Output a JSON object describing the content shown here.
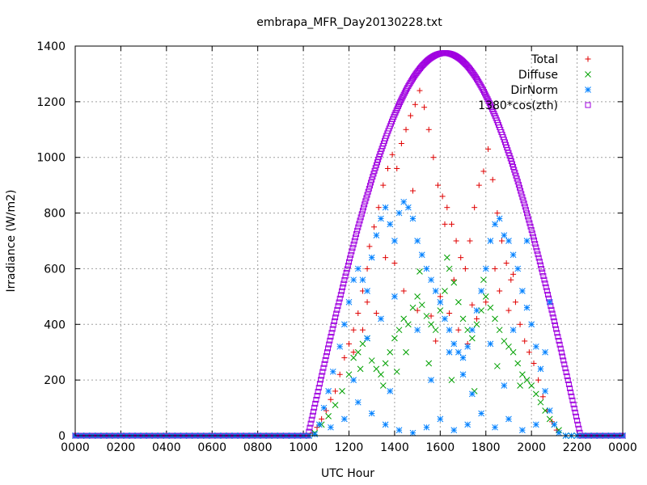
{
  "chart_data": {
    "type": "scatter",
    "title": "embrapa_MFR_Day20130228.txt",
    "xlabel": "UTC Hour",
    "ylabel": "Irradiance (W/m2)",
    "xlim": [
      0,
      24
    ],
    "ylim": [
      0,
      1400
    ],
    "x_tick_labels": [
      "0000",
      "0200",
      "0400",
      "0600",
      "0800",
      "1000",
      "1200",
      "1400",
      "1600",
      "1800",
      "2000",
      "2200",
      "0000"
    ],
    "y_ticks": [
      0,
      200,
      400,
      600,
      800,
      1000,
      1200,
      1400
    ],
    "grid": true,
    "legend_position": "top-right",
    "series": [
      {
        "name": "Total",
        "marker": "plus",
        "color": "#e00000",
        "points": [
          [
            10.4,
            10
          ],
          [
            10.6,
            30
          ],
          [
            10.8,
            60
          ],
          [
            11.0,
            90
          ],
          [
            11.2,
            130
          ],
          [
            11.4,
            160
          ],
          [
            11.6,
            220
          ],
          [
            11.8,
            280
          ],
          [
            12.0,
            330
          ],
          [
            12.2,
            380
          ],
          [
            12.4,
            440
          ],
          [
            12.6,
            520
          ],
          [
            12.8,
            600
          ],
          [
            12.9,
            680
          ],
          [
            13.1,
            750
          ],
          [
            13.3,
            820
          ],
          [
            13.5,
            900
          ],
          [
            13.7,
            960
          ],
          [
            13.9,
            1010
          ],
          [
            14.1,
            960
          ],
          [
            14.3,
            1050
          ],
          [
            14.5,
            1100
          ],
          [
            14.7,
            1150
          ],
          [
            14.9,
            1190
          ],
          [
            15.1,
            1240
          ],
          [
            15.3,
            1180
          ],
          [
            15.5,
            1100
          ],
          [
            15.7,
            1000
          ],
          [
            15.9,
            900
          ],
          [
            16.1,
            860
          ],
          [
            16.3,
            820
          ],
          [
            16.5,
            760
          ],
          [
            16.7,
            700
          ],
          [
            16.9,
            640
          ],
          [
            17.1,
            600
          ],
          [
            17.3,
            700
          ],
          [
            17.5,
            820
          ],
          [
            17.7,
            900
          ],
          [
            17.9,
            950
          ],
          [
            18.1,
            1030
          ],
          [
            18.3,
            920
          ],
          [
            18.5,
            800
          ],
          [
            18.7,
            700
          ],
          [
            18.9,
            620
          ],
          [
            19.1,
            560
          ],
          [
            19.3,
            480
          ],
          [
            19.5,
            400
          ],
          [
            19.7,
            340
          ],
          [
            19.9,
            300
          ],
          [
            20.1,
            260
          ],
          [
            20.3,
            200
          ],
          [
            20.5,
            140
          ],
          [
            20.7,
            90
          ],
          [
            20.9,
            50
          ],
          [
            21.1,
            20
          ],
          [
            14.0,
            620
          ],
          [
            14.4,
            520
          ],
          [
            15.0,
            450
          ],
          [
            15.6,
            430
          ],
          [
            16.0,
            500
          ],
          [
            16.4,
            440
          ],
          [
            16.8,
            380
          ],
          [
            17.2,
            330
          ],
          [
            17.6,
            420
          ],
          [
            18.0,
            480
          ],
          [
            18.6,
            520
          ],
          [
            19.0,
            450
          ],
          [
            13.2,
            440
          ],
          [
            12.6,
            380
          ],
          [
            12.2,
            300
          ],
          [
            15.8,
            340
          ],
          [
            16.6,
            560
          ],
          [
            17.4,
            470
          ],
          [
            18.4,
            600
          ],
          [
            19.2,
            580
          ],
          [
            14.8,
            880
          ],
          [
            16.2,
            760
          ],
          [
            13.6,
            640
          ],
          [
            12.8,
            480
          ]
        ]
      },
      {
        "name": "Diffuse",
        "marker": "cross",
        "color": "#00a000",
        "points": [
          [
            10.5,
            10
          ],
          [
            10.8,
            40
          ],
          [
            11.1,
            70
          ],
          [
            11.4,
            110
          ],
          [
            11.7,
            160
          ],
          [
            12.0,
            220
          ],
          [
            12.2,
            280
          ],
          [
            12.4,
            300
          ],
          [
            12.6,
            330
          ],
          [
            12.8,
            350
          ],
          [
            13.0,
            270
          ],
          [
            13.2,
            240
          ],
          [
            13.4,
            220
          ],
          [
            13.6,
            260
          ],
          [
            13.8,
            300
          ],
          [
            14.0,
            350
          ],
          [
            14.2,
            380
          ],
          [
            14.4,
            420
          ],
          [
            14.6,
            400
          ],
          [
            14.8,
            460
          ],
          [
            15.0,
            500
          ],
          [
            15.2,
            470
          ],
          [
            15.4,
            430
          ],
          [
            15.6,
            400
          ],
          [
            15.8,
            380
          ],
          [
            16.0,
            450
          ],
          [
            16.2,
            520
          ],
          [
            16.4,
            600
          ],
          [
            16.6,
            550
          ],
          [
            16.8,
            480
          ],
          [
            17.0,
            420
          ],
          [
            17.2,
            380
          ],
          [
            17.4,
            350
          ],
          [
            17.6,
            400
          ],
          [
            17.8,
            450
          ],
          [
            18.0,
            500
          ],
          [
            18.2,
            460
          ],
          [
            18.4,
            420
          ],
          [
            18.6,
            380
          ],
          [
            18.8,
            340
          ],
          [
            19.0,
            320
          ],
          [
            19.2,
            300
          ],
          [
            19.4,
            260
          ],
          [
            19.6,
            220
          ],
          [
            19.8,
            200
          ],
          [
            20.0,
            180
          ],
          [
            20.2,
            150
          ],
          [
            20.4,
            120
          ],
          [
            20.6,
            90
          ],
          [
            20.8,
            60
          ],
          [
            21.0,
            40
          ],
          [
            21.2,
            20
          ],
          [
            13.5,
            180
          ],
          [
            14.5,
            300
          ],
          [
            15.5,
            260
          ],
          [
            16.5,
            200
          ],
          [
            17.5,
            160
          ],
          [
            18.5,
            250
          ],
          [
            19.5,
            180
          ],
          [
            12.5,
            240
          ],
          [
            16.3,
            640
          ],
          [
            17.9,
            560
          ],
          [
            15.1,
            590
          ],
          [
            14.1,
            230
          ]
        ]
      },
      {
        "name": "DirNorm",
        "marker": "star",
        "color": "#0080ff",
        "points": [
          [
            10.5,
            5
          ],
          [
            10.7,
            40
          ],
          [
            10.9,
            100
          ],
          [
            11.1,
            160
          ],
          [
            11.3,
            230
          ],
          [
            11.6,
            320
          ],
          [
            11.8,
            400
          ],
          [
            12.0,
            480
          ],
          [
            12.2,
            560
          ],
          [
            12.4,
            600
          ],
          [
            12.6,
            560
          ],
          [
            12.8,
            520
          ],
          [
            13.0,
            640
          ],
          [
            13.2,
            720
          ],
          [
            13.4,
            780
          ],
          [
            13.6,
            820
          ],
          [
            13.8,
            760
          ],
          [
            14.0,
            700
          ],
          [
            14.2,
            800
          ],
          [
            14.4,
            840
          ],
          [
            14.6,
            820
          ],
          [
            14.8,
            780
          ],
          [
            15.0,
            700
          ],
          [
            15.2,
            650
          ],
          [
            15.4,
            600
          ],
          [
            15.6,
            560
          ],
          [
            15.8,
            520
          ],
          [
            16.0,
            480
          ],
          [
            16.2,
            420
          ],
          [
            16.4,
            380
          ],
          [
            16.6,
            330
          ],
          [
            16.8,
            300
          ],
          [
            17.0,
            280
          ],
          [
            17.2,
            320
          ],
          [
            17.4,
            380
          ],
          [
            17.6,
            450
          ],
          [
            17.8,
            520
          ],
          [
            18.0,
            600
          ],
          [
            18.2,
            700
          ],
          [
            18.4,
            760
          ],
          [
            18.6,
            780
          ],
          [
            18.8,
            720
          ],
          [
            19.0,
            700
          ],
          [
            19.2,
            650
          ],
          [
            19.4,
            600
          ],
          [
            19.6,
            520
          ],
          [
            19.8,
            460
          ],
          [
            20.0,
            400
          ],
          [
            20.2,
            320
          ],
          [
            20.4,
            240
          ],
          [
            20.6,
            160
          ],
          [
            20.8,
            90
          ],
          [
            21.0,
            40
          ],
          [
            21.2,
            10
          ],
          [
            11.2,
            30
          ],
          [
            11.8,
            60
          ],
          [
            12.4,
            120
          ],
          [
            13.0,
            80
          ],
          [
            13.6,
            40
          ],
          [
            14.2,
            20
          ],
          [
            14.8,
            10
          ],
          [
            15.4,
            30
          ],
          [
            16.0,
            60
          ],
          [
            16.6,
            20
          ],
          [
            17.2,
            40
          ],
          [
            17.8,
            80
          ],
          [
            18.4,
            30
          ],
          [
            19.0,
            60
          ],
          [
            19.6,
            20
          ],
          [
            20.2,
            40
          ],
          [
            12.8,
            350
          ],
          [
            13.4,
            420
          ],
          [
            14.0,
            500
          ],
          [
            15.0,
            380
          ],
          [
            16.4,
            300
          ],
          [
            17.0,
            220
          ],
          [
            18.2,
            330
          ],
          [
            19.2,
            380
          ],
          [
            13.8,
            160
          ],
          [
            15.6,
            200
          ],
          [
            17.4,
            150
          ],
          [
            18.8,
            180
          ],
          [
            12.2,
            200
          ],
          [
            20.6,
            300
          ],
          [
            20.8,
            480
          ],
          [
            19.8,
            700
          ]
        ]
      },
      {
        "name": "1380*cos(zth)",
        "marker": "square",
        "color": "#a000e0",
        "formula": "1380*cos(zth), zero before 10.2 h and after 22.15 h, peak 1375 at 16.2 h"
      }
    ]
  }
}
